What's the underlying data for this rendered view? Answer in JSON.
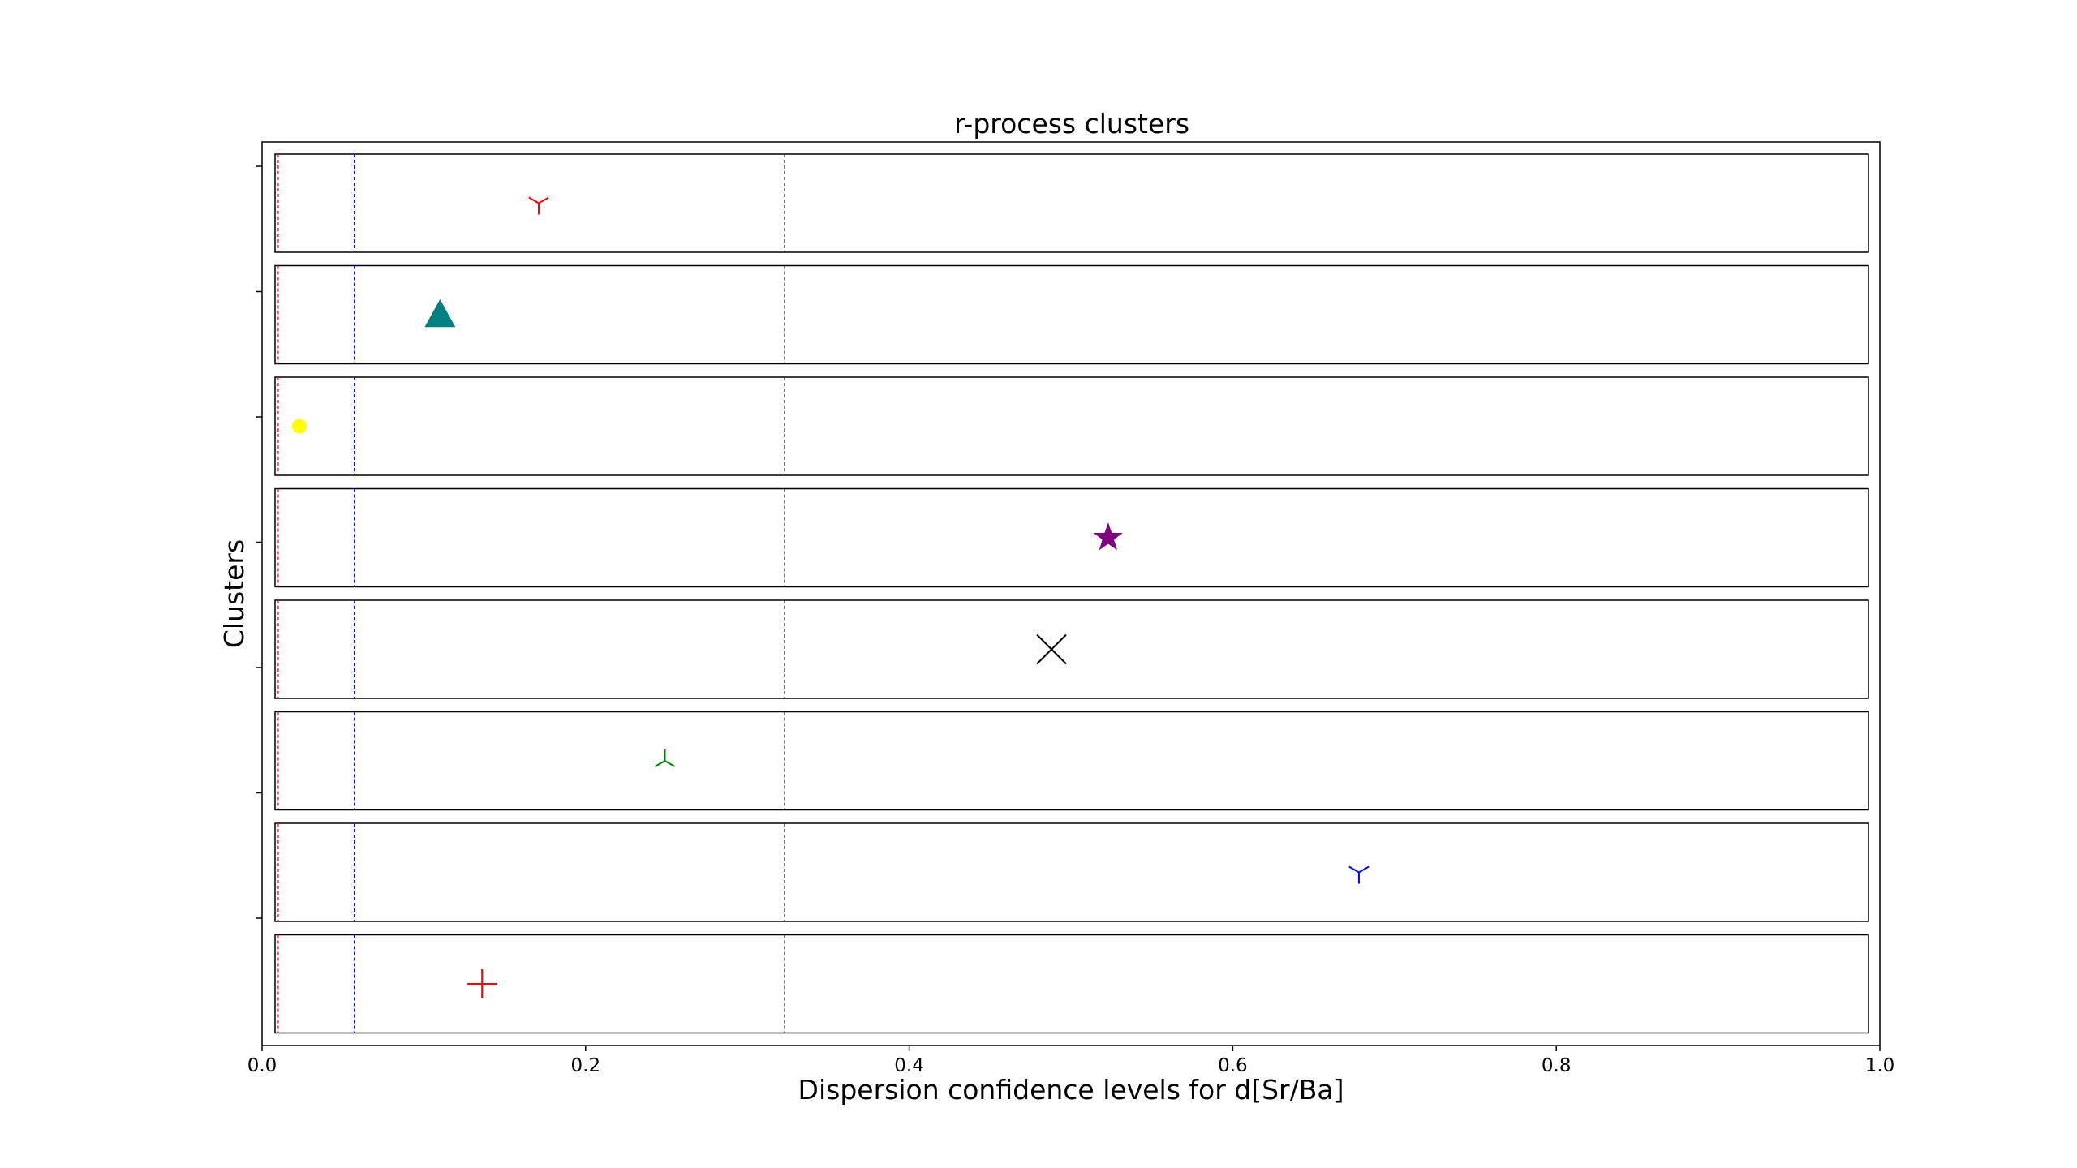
{
  "chart_data": {
    "type": "scatter",
    "title": "r-process clusters",
    "xlabel": "Dispersion confidence levels for d[Sr/Ba]",
    "ylabel": "Clusters",
    "xlim": [
      0.0,
      1.0
    ],
    "xticks": [
      "0.0",
      "0.2",
      "0.4",
      "0.6",
      "0.8",
      "1.0"
    ],
    "reference_lines": [
      {
        "x": 0.01,
        "color": "#ff0000"
      },
      {
        "x": 0.057,
        "color": "#0000ff"
      },
      {
        "x": 0.323,
        "color": "#000000"
      }
    ],
    "points": [
      {
        "x": 0.171,
        "marker": "tri-down",
        "color": "#ff0000"
      },
      {
        "x": 0.11,
        "marker": "triangle",
        "color": "#008080"
      },
      {
        "x": 0.023,
        "marker": "circle",
        "color": "#ffff00"
      },
      {
        "x": 0.523,
        "marker": "star",
        "color": "#800080"
      },
      {
        "x": 0.488,
        "marker": "x",
        "color": "#000000"
      },
      {
        "x": 0.249,
        "marker": "tri-up",
        "color": "#008000"
      },
      {
        "x": 0.678,
        "marker": "tri-down",
        "color": "#0000ff"
      },
      {
        "x": 0.136,
        "marker": "plus",
        "color": "#ff0000"
      }
    ],
    "grid": false,
    "legend": "none"
  }
}
